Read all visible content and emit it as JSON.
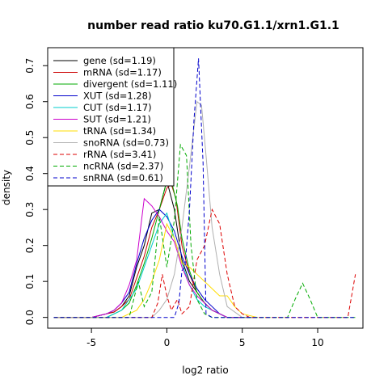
{
  "chart_data": {
    "type": "line",
    "title": "number read ratio ku70.G1.1/xrn1.G1.1",
    "xlabel": "log2 ratio",
    "ylabel": "density",
    "xlim": [
      -7.9,
      13.0
    ],
    "ylim": [
      -0.03,
      0.75
    ],
    "xticks": [
      -5,
      0,
      5,
      10
    ],
    "xtick_labels": [
      "-5",
      "0",
      "5",
      "10"
    ],
    "yticks": [
      0.0,
      0.1,
      0.2,
      0.3,
      0.4,
      0.5,
      0.6,
      0.7
    ],
    "ytick_labels": [
      "0.0",
      "0.1",
      "0.2",
      "0.3",
      "0.4",
      "0.5",
      "0.6",
      "0.7"
    ],
    "legend_position": "top-left",
    "grid": false,
    "series": [
      {
        "name": "gene (sd=1.19)",
        "color": "#000000",
        "dash": "solid",
        "x": [
          -7.5,
          -5,
          -4,
          -3.5,
          -3,
          -2.5,
          -2,
          -1.5,
          -1,
          -0.5,
          0,
          0.5,
          1,
          1.5,
          2,
          2.5,
          3,
          3.5,
          4,
          5,
          6
        ],
        "y": [
          0,
          0,
          0.01,
          0.015,
          0.03,
          0.06,
          0.14,
          0.2,
          0.29,
          0.3,
          0.38,
          0.3,
          0.16,
          0.1,
          0.07,
          0.04,
          0.02,
          0.01,
          0,
          0,
          0
        ]
      },
      {
        "name": "mRNA (sd=1.17)",
        "color": "#cc0000",
        "dash": "solid",
        "x": [
          -7.5,
          -5,
          -4,
          -3.5,
          -3,
          -2.5,
          -2,
          -1.5,
          -1,
          -0.5,
          0,
          0.3,
          0.6,
          1,
          1.5,
          2,
          2.5,
          3,
          3.5,
          4,
          5,
          6
        ],
        "y": [
          0,
          0,
          0.01,
          0.015,
          0.03,
          0.05,
          0.11,
          0.17,
          0.25,
          0.3,
          0.36,
          0.37,
          0.33,
          0.2,
          0.12,
          0.07,
          0.04,
          0.02,
          0.01,
          0,
          0,
          0
        ]
      },
      {
        "name": "divergent (sd=1.11)",
        "color": "#00aa00",
        "dash": "solid",
        "x": [
          -7.5,
          -4,
          -3,
          -2.5,
          -2,
          -1.5,
          -1,
          -0.5,
          0,
          0.3,
          0.7,
          1,
          1.5,
          2,
          2.5,
          3,
          4,
          6
        ],
        "y": [
          0,
          0,
          0.02,
          0.04,
          0.09,
          0.15,
          0.22,
          0.3,
          0.38,
          0.38,
          0.31,
          0.22,
          0.13,
          0.07,
          0.04,
          0.02,
          0,
          0
        ]
      },
      {
        "name": "XUT (sd=1.28)",
        "color": "#0000cc",
        "dash": "solid",
        "x": [
          -7.5,
          -5,
          -4,
          -3.5,
          -3,
          -2.5,
          -2,
          -1.5,
          -1,
          -0.5,
          0,
          0.5,
          1,
          1.5,
          2,
          2.5,
          3,
          3.5,
          4,
          5,
          6
        ],
        "y": [
          0,
          0,
          0.01,
          0.02,
          0.04,
          0.07,
          0.15,
          0.22,
          0.27,
          0.3,
          0.28,
          0.24,
          0.17,
          0.12,
          0.08,
          0.05,
          0.03,
          0.01,
          0,
          0,
          0
        ]
      },
      {
        "name": "CUT (sd=1.17)",
        "color": "#00cccc",
        "dash": "solid",
        "x": [
          -7.5,
          -4,
          -3,
          -2.5,
          -2,
          -1.5,
          -1,
          -0.5,
          0,
          0.5,
          1,
          1.5,
          2,
          2.5,
          3,
          3.5,
          4,
          6
        ],
        "y": [
          0,
          0,
          0.02,
          0.05,
          0.08,
          0.14,
          0.2,
          0.26,
          0.29,
          0.22,
          0.15,
          0.09,
          0.05,
          0.03,
          0.02,
          0.01,
          0,
          0
        ]
      },
      {
        "name": "SUT (sd=1.21)",
        "color": "#cc00cc",
        "dash": "solid",
        "x": [
          -7.5,
          -5,
          -4,
          -3.5,
          -3,
          -2.5,
          -2,
          -1.5,
          -1,
          -0.5,
          0,
          0.5,
          1,
          1.5,
          2,
          2.5,
          3,
          3.5,
          4,
          5,
          6
        ],
        "y": [
          0,
          0,
          0.01,
          0.02,
          0.04,
          0.09,
          0.16,
          0.33,
          0.31,
          0.28,
          0.24,
          0.21,
          0.14,
          0.09,
          0.06,
          0.04,
          0.02,
          0.01,
          0,
          0,
          0
        ]
      },
      {
        "name": "tRNA (sd=1.34)",
        "color": "#ffdd00",
        "dash": "solid",
        "x": [
          -7.5,
          -3,
          -2.5,
          -2,
          -1.5,
          -1,
          -0.5,
          0,
          0.5,
          1,
          1.5,
          2,
          2.5,
          3,
          3.5,
          4,
          4.5,
          5,
          6
        ],
        "y": [
          0,
          0,
          0.01,
          0.02,
          0.05,
          0.1,
          0.16,
          0.26,
          0.22,
          0.15,
          0.14,
          0.12,
          0.1,
          0.08,
          0.06,
          0.06,
          0.03,
          0.01,
          0
        ]
      },
      {
        "name": "snoRNA (sd=0.73)",
        "color": "#b0b0b0",
        "dash": "solid",
        "x": [
          -7.5,
          -1,
          -0.5,
          0,
          0.5,
          1,
          1.5,
          2,
          2.3,
          2.6,
          3,
          3.5,
          4,
          5,
          6
        ],
        "y": [
          0,
          0,
          0.02,
          0.05,
          0.12,
          0.25,
          0.42,
          0.6,
          0.59,
          0.45,
          0.25,
          0.12,
          0.03,
          0,
          0
        ]
      },
      {
        "name": "rRNA (sd=3.41)",
        "color": "#dd0000",
        "dash": "dashed",
        "x": [
          -7.5,
          -1,
          -0.6,
          -0.3,
          0,
          0.3,
          0.7,
          1,
          1.5,
          2,
          2.5,
          3,
          3.5,
          4,
          4.5,
          5,
          5.5,
          12,
          12.5
        ],
        "y": [
          0,
          0,
          0.04,
          0.12,
          0.06,
          0.02,
          0.05,
          0.01,
          0.03,
          0.16,
          0.2,
          0.3,
          0.26,
          0.12,
          0.03,
          0.01,
          0,
          0,
          0.12
        ]
      },
      {
        "name": "ncRNA (sd=2.37)",
        "color": "#00aa00",
        "dash": "dashed",
        "x": [
          -7.5,
          -2.5,
          -1.9,
          -1.5,
          -1,
          -0.5,
          0,
          0.5,
          0.9,
          1.3,
          1.6,
          2,
          2.5,
          3,
          5,
          8,
          8.5,
          9,
          9.5,
          10,
          12.5
        ],
        "y": [
          0,
          0,
          0.1,
          0.03,
          0.07,
          0.28,
          0.14,
          0.27,
          0.48,
          0.45,
          0.2,
          0.05,
          0.01,
          0,
          0,
          0,
          0.05,
          0.095,
          0.05,
          0,
          0
        ]
      },
      {
        "name": "snRNA (sd=0.61)",
        "color": "#0000cc",
        "dash": "dashed",
        "x": [
          -7.5,
          0.5,
          0.8,
          1,
          1.2,
          1.5,
          1.8,
          2.1,
          2.4,
          2.6,
          3,
          3.5,
          12.5
        ],
        "y": [
          0,
          0,
          0.04,
          0.13,
          0.14,
          0.3,
          0.55,
          0.72,
          0.43,
          0.01,
          0,
          0,
          0
        ]
      }
    ]
  }
}
